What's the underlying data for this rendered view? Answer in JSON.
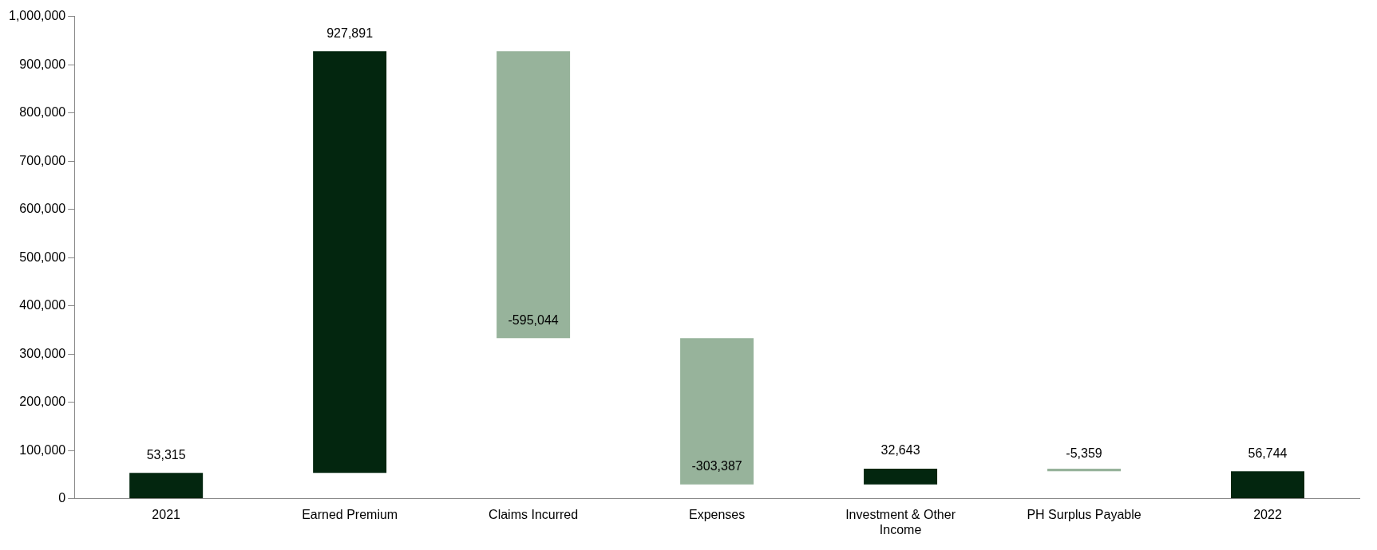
{
  "chart_data": {
    "type": "bar",
    "categories": [
      "2021",
      "Earned Premium",
      "Claims Incurred",
      "Expenses",
      "Investment & Other Income",
      "PH Surplus Payable",
      "2022"
    ],
    "base": [
      0,
      53315,
      927891,
      332847,
      29460,
      62103,
      0
    ],
    "values": [
      53315,
      874576,
      -595044,
      -303387,
      32643,
      -5359,
      56744
    ],
    "value_labels": [
      "53,315",
      "927,891",
      "-595,044",
      "-303,387",
      "32,643",
      "-5,359",
      "56,744"
    ],
    "colors": [
      "#03260f",
      "#03260f",
      "#97b39b",
      "#97b39b",
      "#03260f",
      "#97b39b",
      "#03260f"
    ],
    "ylim": [
      0,
      1000000
    ],
    "yticks": [
      {
        "value": 0,
        "label": "0"
      },
      {
        "value": 100000,
        "label": "100,000"
      },
      {
        "value": 200000,
        "label": "200,000"
      },
      {
        "value": 300000,
        "label": "300,000"
      },
      {
        "value": 400000,
        "label": "400,000"
      },
      {
        "value": 500000,
        "label": "500,000"
      },
      {
        "value": 600000,
        "label": "600,000"
      },
      {
        "value": 700000,
        "label": "700,000"
      },
      {
        "value": 800000,
        "label": "800,000"
      },
      {
        "value": 900000,
        "label": "900,000"
      },
      {
        "value": 1000000,
        "label": "1,000,000"
      }
    ],
    "grid": false,
    "legend": false
  }
}
